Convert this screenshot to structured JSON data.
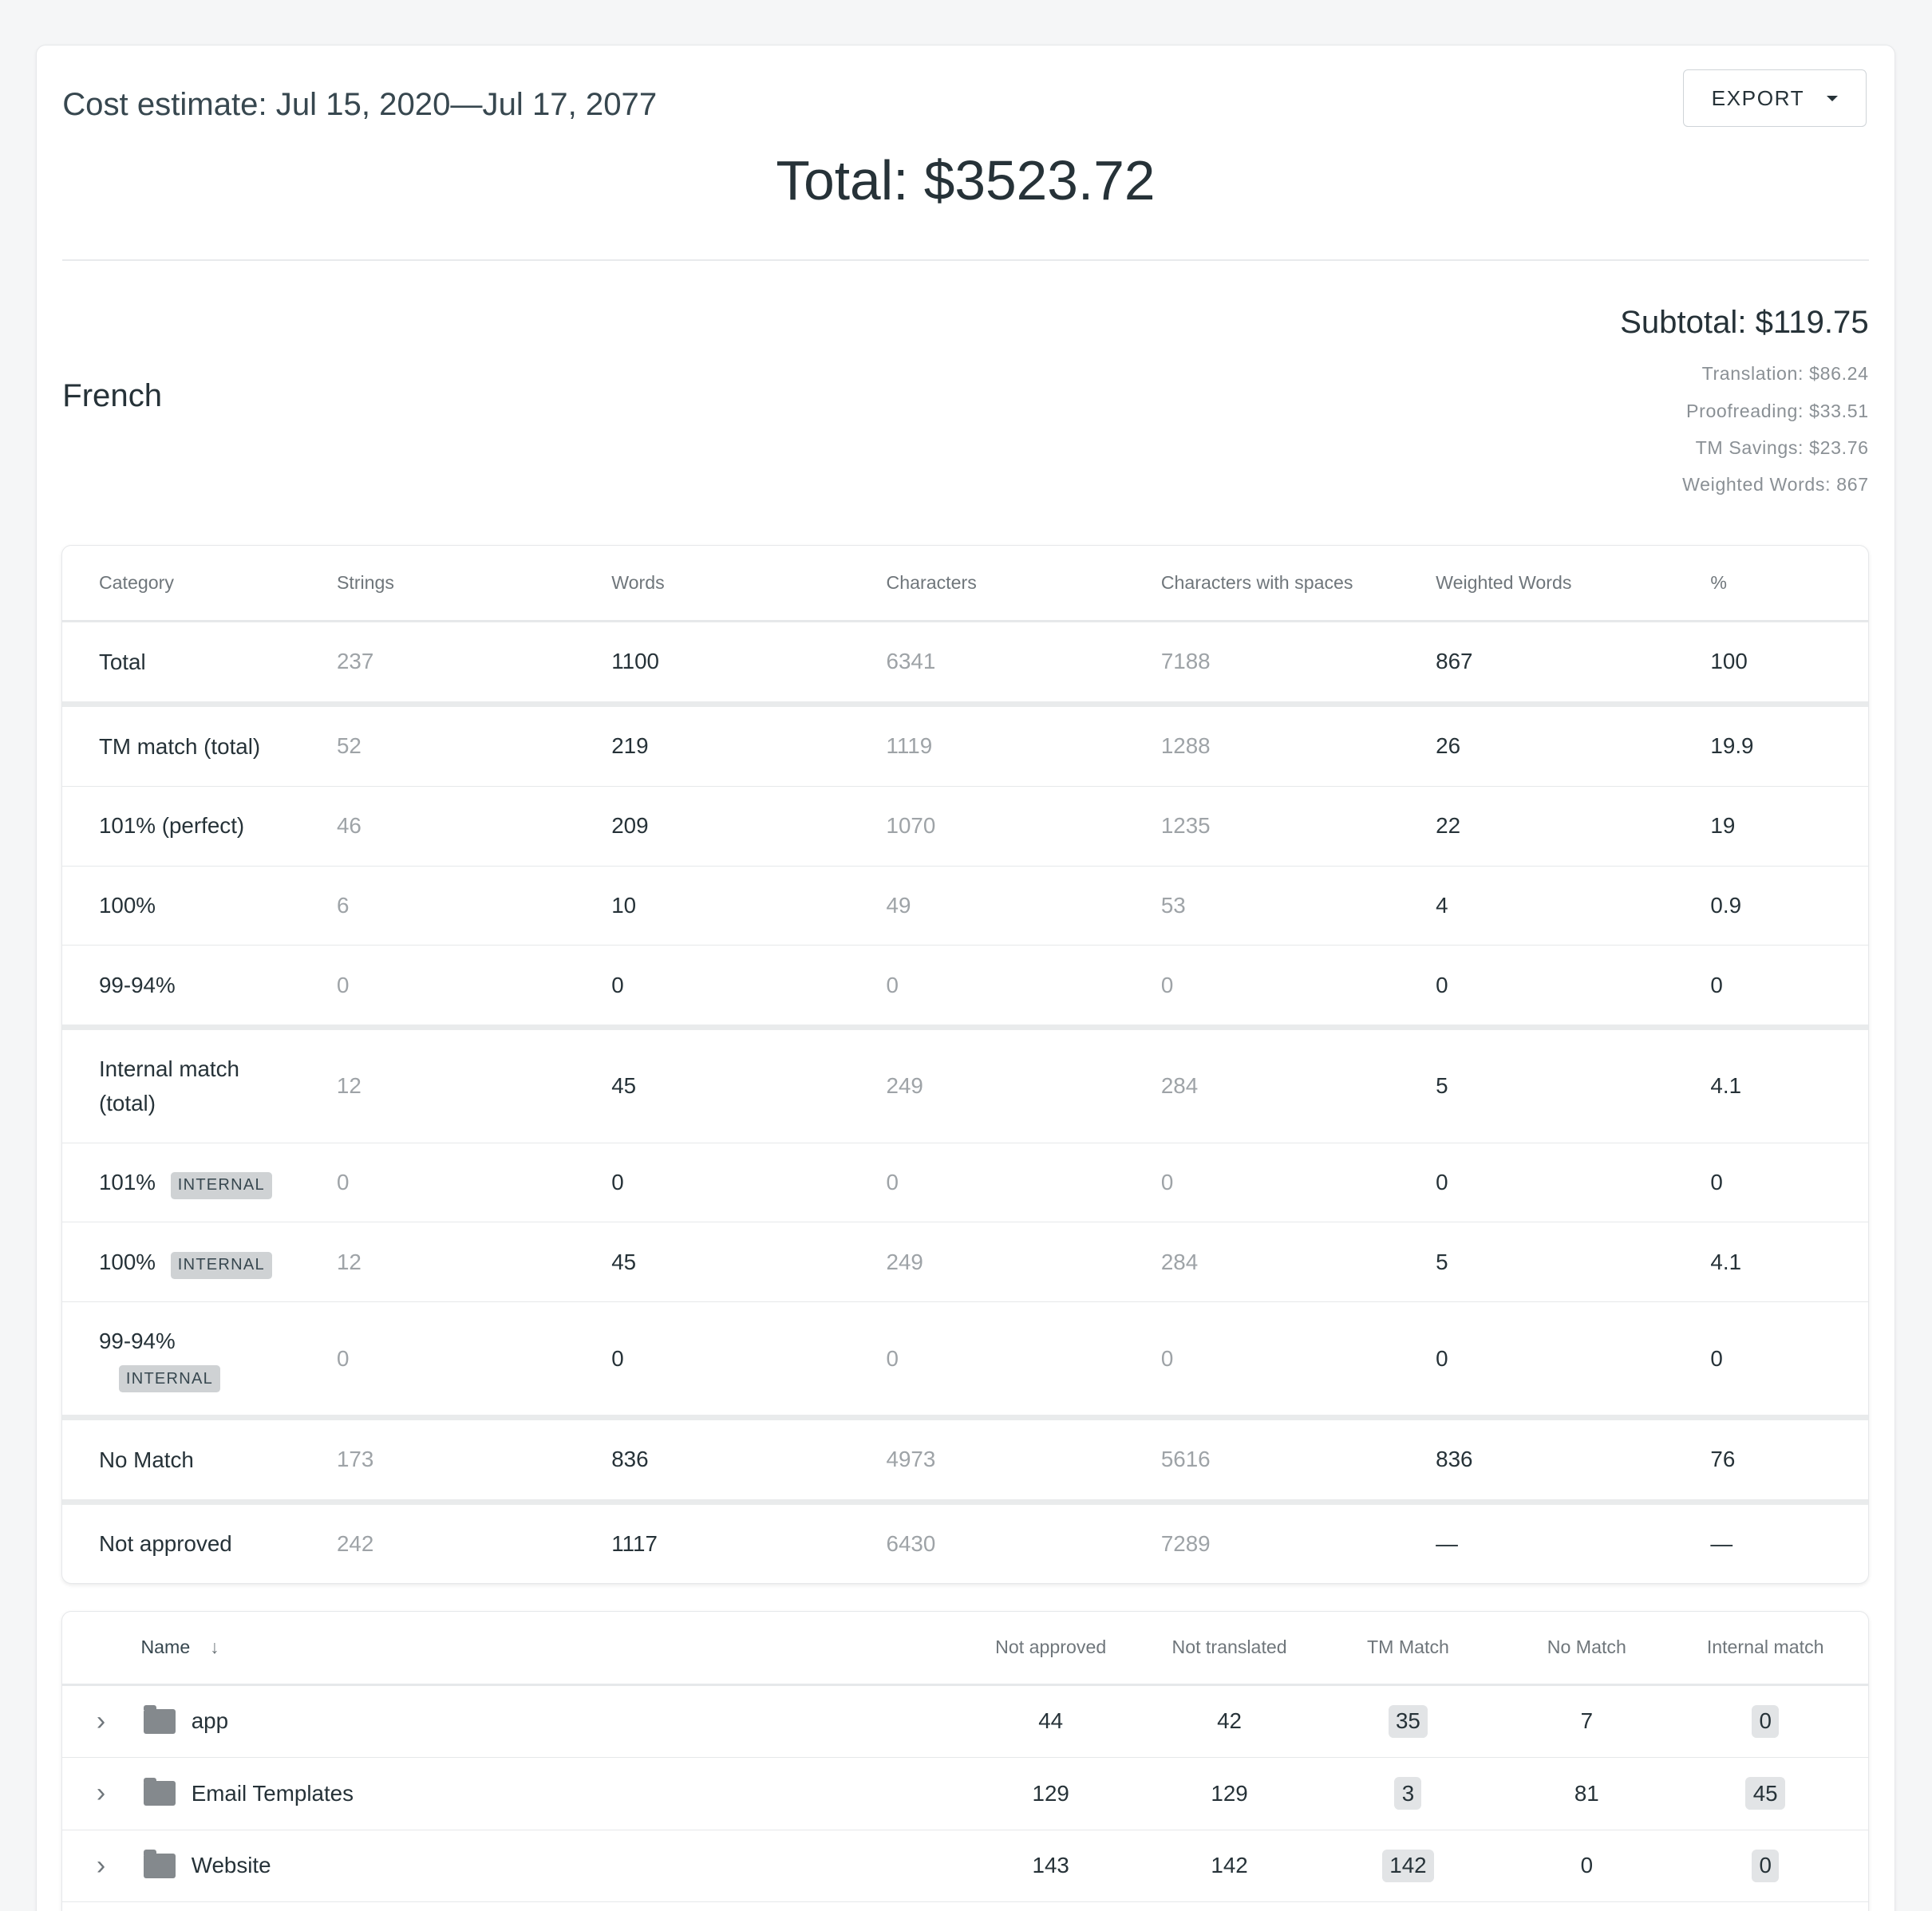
{
  "header": {
    "title": "Cost estimate: Jul 15, 2020—Jul 17, 2077",
    "export_label": "EXPORT",
    "total": "Total: $3523.72"
  },
  "language": {
    "name": "French",
    "subtotal": "Subtotal: $119.75",
    "details": [
      "Translation: $86.24",
      "Proofreading: $33.51",
      "TM Savings: $23.76",
      "Weighted Words: 867"
    ]
  },
  "stats_table": {
    "columns": [
      "Category",
      "Strings",
      "Words",
      "Characters",
      "Characters with spaces",
      "Weighted Words",
      "%"
    ],
    "badge": "INTERNAL",
    "rows": [
      {
        "category": "Total",
        "values": [
          "237",
          "1100",
          "6341",
          "7188",
          "867",
          "100"
        ]
      },
      {
        "category": "TM match (total)",
        "values": [
          "52",
          "219",
          "1119",
          "1288",
          "26",
          "19.9"
        ]
      },
      {
        "category": "101% (perfect)",
        "values": [
          "46",
          "209",
          "1070",
          "1235",
          "22",
          "19"
        ]
      },
      {
        "category": "100%",
        "values": [
          "6",
          "10",
          "49",
          "53",
          "4",
          "0.9"
        ]
      },
      {
        "category": "99-94%",
        "values": [
          "0",
          "0",
          "0",
          "0",
          "0",
          "0"
        ]
      },
      {
        "category": "Internal match (total)",
        "values": [
          "12",
          "45",
          "249",
          "284",
          "5",
          "4.1"
        ]
      },
      {
        "category": "101%",
        "values": [
          "0",
          "0",
          "0",
          "0",
          "0",
          "0"
        ]
      },
      {
        "category": "100%",
        "values": [
          "12",
          "45",
          "249",
          "284",
          "5",
          "4.1"
        ]
      },
      {
        "category": "99-94%",
        "values": [
          "0",
          "0",
          "0",
          "0",
          "0",
          "0"
        ]
      },
      {
        "category": "No Match",
        "values": [
          "173",
          "836",
          "4973",
          "5616",
          "836",
          "76"
        ]
      },
      {
        "category": "Not approved",
        "values": [
          "242",
          "1117",
          "6430",
          "7289",
          "—",
          "—"
        ]
      }
    ]
  },
  "files_table": {
    "columns": [
      "Name",
      "Not approved",
      "Not translated",
      "TM Match",
      "No Match",
      "Internal match"
    ],
    "rows": [
      {
        "name": "app",
        "values": [
          "44",
          "42",
          "35",
          "7",
          "0"
        ]
      },
      {
        "name": "Email Templates",
        "values": [
          "129",
          "129",
          "3",
          "81",
          "45"
        ]
      },
      {
        "name": "Website",
        "values": [
          "143",
          "142",
          "142",
          "0",
          "0"
        ]
      }
    ]
  }
}
